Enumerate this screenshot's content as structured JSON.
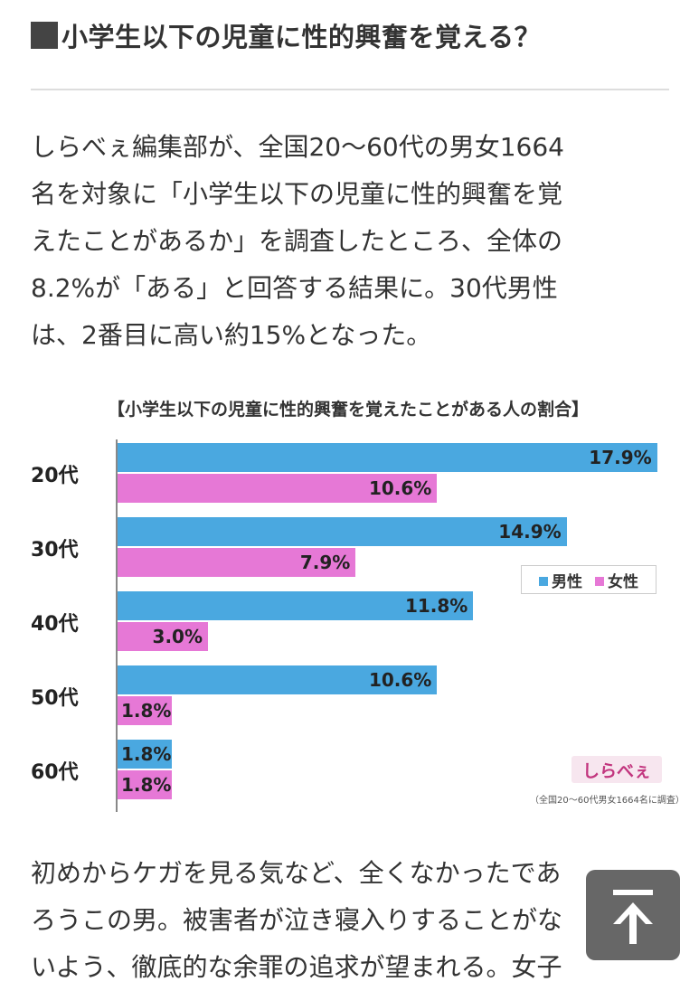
{
  "heading": "小学生以下の児童に性的興奮を覚える？",
  "article": {
    "lines": [
      "しらべぇ編集部が、全国20〜60代の男女1664",
      "名を対象に「小学生以下の児童に性的興奮を覚",
      "えたことがあるか」を調査したところ、全体の",
      "8.2%が「ある」と回答する結果に。30代男性",
      "は、2番目に高い約15%となった。"
    ]
  },
  "chart_data": {
    "type": "bar",
    "orientation": "horizontal",
    "title": "【小学生以下の児童に性的興奮を覚えたことがある人の割合】",
    "categories": [
      "20代",
      "30代",
      "40代",
      "50代",
      "60代"
    ],
    "series": [
      {
        "name": "男性",
        "values": [
          17.9,
          14.9,
          11.8,
          10.6,
          1.8
        ],
        "labels": [
          "17.9%",
          "14.9%",
          "11.8%",
          "10.6%",
          "1.8%"
        ],
        "color": "#4aa8e0"
      },
      {
        "name": "女性",
        "values": [
          10.6,
          7.9,
          3.0,
          1.8,
          1.8
        ],
        "labels": [
          "10.6%",
          "7.9%",
          "3.0%",
          "1.8%",
          "1.8%"
        ],
        "color": "#e678d6"
      }
    ],
    "xlim": [
      0,
      18
    ],
    "legend": "right",
    "brand": "しらべぇ",
    "footnote": "（全国20〜60代男女1664名に調査）"
  },
  "article2": {
    "lines": [
      "初めからケガを見る気など、全くなかったであ",
      "ろうこの男。被害者が泣き寝入りすることがな",
      "いよう、徹底的な余罪の追求が望まれる。女子"
    ]
  },
  "scroll_top": {
    "icon": "arrow-up-icon"
  }
}
